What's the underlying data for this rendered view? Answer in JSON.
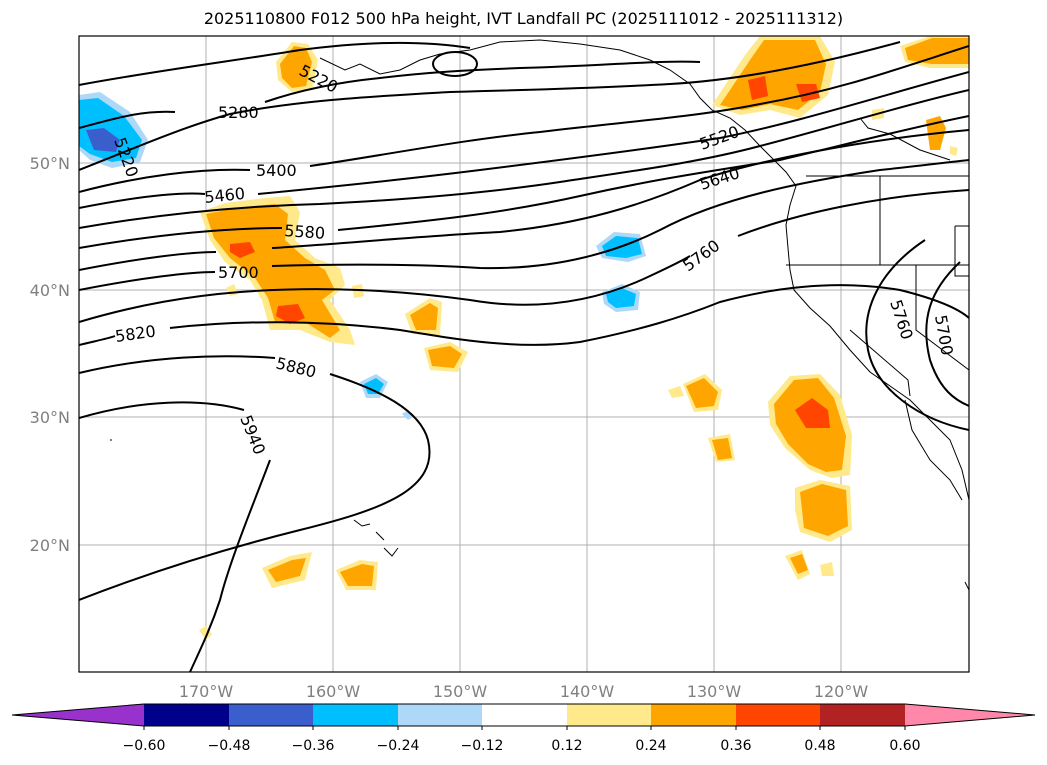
{
  "title": "2025110800 F012 500 hPa height, IVT Landfall PC (2025111012 - 2025111312)",
  "map": {
    "lat_labels": [
      "50°N",
      "40°N",
      "30°N",
      "20°N"
    ],
    "lon_labels": [
      "170°W",
      "160°W",
      "150°W",
      "140°W",
      "130°W",
      "120°W"
    ],
    "contour_labels": [
      "5220",
      "5280",
      "5220",
      "5400",
      "5460",
      "5580",
      "5700",
      "5820",
      "5880",
      "5940",
      "5520",
      "5640",
      "5760",
      "5760",
      "5700"
    ]
  },
  "colorbar": {
    "tick_labels": [
      "−0.60",
      "−0.48",
      "−0.36",
      "−0.24",
      "−0.12",
      "0.12",
      "0.24",
      "0.36",
      "0.48",
      "0.60"
    ],
    "colors": [
      "#9932cc",
      "#00008b",
      "#3a5fcd",
      "#00bfff",
      "#add8f7",
      "#ffffff",
      "#ffe98a",
      "#ffa500",
      "#ff4500",
      "#b22222",
      "#ff88aa"
    ]
  }
}
